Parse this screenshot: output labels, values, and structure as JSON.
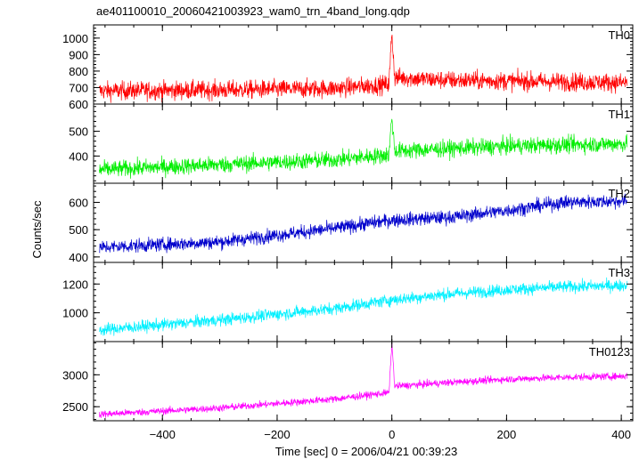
{
  "chart_data": {
    "type": "line",
    "title": "ae401100010_20060421003923_wam0_trn_4band_long.qdp",
    "xlabel": "Time [sec] 0 = 2006/04/21 00:39:23",
    "ylabel": "Counts/sec",
    "xlim": [
      -520,
      420
    ],
    "xticks": [
      -400,
      -200,
      0,
      200,
      400
    ],
    "grid": false,
    "panels": [
      {
        "name": "TH0",
        "color": "#ff0000",
        "ylim": [
          600,
          1080
        ],
        "yticks": [
          600,
          700,
          800,
          900,
          1000
        ],
        "trend": {
          "x": [
            -510,
            -300,
            -100,
            -5,
            0,
            5,
            20,
            60,
            100,
            200,
            300,
            410
          ],
          "y": [
            680,
            685,
            695,
            720,
            1040,
            760,
            760,
            750,
            745,
            740,
            735,
            730
          ]
        },
        "noise": 40
      },
      {
        "name": "TH1",
        "color": "#00ee00",
        "ylim": [
          290,
          610
        ],
        "yticks": [
          400,
          500
        ],
        "trend": {
          "x": [
            -510,
            -300,
            -100,
            -5,
            0,
            5,
            100,
            200,
            300,
            410
          ],
          "y": [
            345,
            365,
            385,
            405,
            560,
            420,
            430,
            440,
            445,
            450
          ]
        },
        "noise": 24
      },
      {
        "name": "TH2",
        "color": "#0000cc",
        "ylim": [
          380,
          670
        ],
        "yticks": [
          400,
          500,
          600
        ],
        "trend": {
          "x": [
            -510,
            -300,
            -100,
            0,
            100,
            200,
            300,
            410
          ],
          "y": [
            435,
            455,
            505,
            535,
            545,
            570,
            600,
            605
          ]
        },
        "noise": 18
      },
      {
        "name": "TH3",
        "color": "#00f0ff",
        "ylim": [
          800,
          1350
        ],
        "yticks": [
          1000,
          1200
        ],
        "trend": {
          "x": [
            -510,
            -300,
            -100,
            0,
            100,
            200,
            300,
            410
          ],
          "y": [
            880,
            950,
            1030,
            1090,
            1130,
            1160,
            1180,
            1190
          ]
        },
        "noise": 30
      },
      {
        "name": "TH0123",
        "color": "#ff00ff",
        "ylim": [
          2280,
          3520
        ],
        "yticks": [
          2500,
          3000
        ],
        "trend": {
          "x": [
            -510,
            -300,
            -100,
            -5,
            0,
            5,
            100,
            200,
            300,
            410
          ],
          "y": [
            2380,
            2480,
            2620,
            2720,
            3500,
            2820,
            2880,
            2930,
            2960,
            2980
          ]
        },
        "noise": 40
      }
    ]
  }
}
